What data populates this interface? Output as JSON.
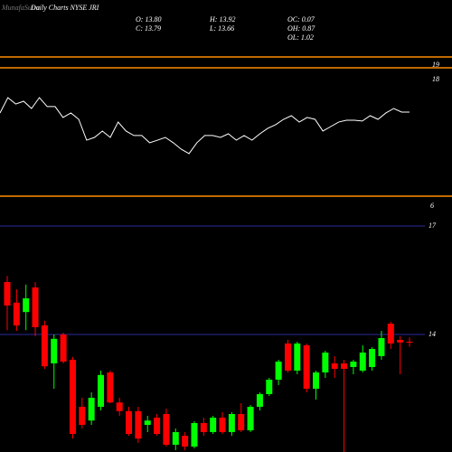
{
  "chart_data": [
    {
      "type": "line",
      "watermark": "MunafaSutra",
      "title": "Daily Charts NYSE JRI",
      "stats": [
        "O: 13.80",
        "H: 13.92",
        "OC: 0.07",
        "C: 13.79",
        "L: 13.66",
        "OH: 0.87",
        "OL: 1.02"
      ],
      "ylim": [
        9.125,
        21
      ],
      "yticks": [
        19,
        18
      ],
      "levels": [
        19.56,
        18.81,
        9.94
      ],
      "level_color": "#ff8c00",
      "color": "#ffffff",
      "values": [
        15.69,
        16.75,
        16.31,
        16.5,
        16,
        16.75,
        16.13,
        16.13,
        15.38,
        15.69,
        15.25,
        13.81,
        14,
        14.44,
        14,
        15.06,
        14.44,
        14.13,
        14.13,
        13.63,
        13.81,
        14,
        13.63,
        13.19,
        12.88,
        13.63,
        14.13,
        14.13,
        14,
        14.25,
        13.81,
        14.13,
        13.81,
        14.25,
        14.63,
        14.88,
        15.25,
        15.5,
        15.06,
        15.38,
        15.25,
        14.44,
        14.75,
        15.06,
        15.19,
        15.19,
        15.13,
        15.5,
        15.25,
        15.69,
        16,
        15.75,
        15.75
      ]
    },
    {
      "type": "candlestick",
      "annotation": "6",
      "ylim": [
        10.75,
        17.5
      ],
      "yticks": [
        17,
        14
      ],
      "grid_color": "#2a2aa0",
      "up_color": "#00ff00",
      "down_color": "#ff0000",
      "open": [
        15.45,
        14.88,
        14.62,
        15.3,
        14.25,
        13.2,
        14.0,
        13.3,
        12.0,
        11.62,
        12.0,
        12.95,
        12.12,
        11.88,
        11.88,
        11.5,
        11.7,
        11.8,
        10.95,
        11.2,
        10.9,
        11.55,
        11.3,
        11.7,
        11.3,
        11.8,
        11.35,
        12.0,
        12.35,
        12.75,
        13.75,
        13.0,
        13.7,
        12.5,
        12.95,
        13.2,
        13.2,
        13.1,
        13.0,
        13.1,
        13.4,
        14.3,
        13.85,
        13.8
      ],
      "high": [
        15.62,
        15.25,
        15.38,
        15.45,
        14.38,
        14.0,
        14.05,
        13.38,
        12.25,
        12.4,
        13.0,
        13.0,
        12.25,
        12.0,
        12.0,
        11.75,
        11.8,
        11.95,
        11.4,
        11.3,
        11.6,
        11.7,
        11.75,
        11.85,
        11.85,
        12.1,
        12.05,
        12.4,
        12.8,
        13.3,
        13.85,
        13.8,
        13.75,
        13.0,
        13.55,
        13.4,
        13.3,
        13.3,
        13.7,
        13.65,
        14.1,
        14.35,
        13.95,
        13.92
      ],
      "low": [
        14.12,
        14.1,
        14.12,
        13.95,
        13.05,
        12.5,
        13.2,
        11.12,
        11.4,
        11.5,
        11.9,
        12.1,
        11.75,
        11.2,
        11.0,
        11.3,
        11.2,
        10.9,
        10.8,
        10.8,
        10.85,
        11.2,
        11.25,
        11.25,
        11.2,
        11.3,
        11.3,
        11.9,
        12.3,
        12.6,
        12.95,
        12.9,
        12.4,
        12.2,
        12.8,
        12.8,
        10.75,
        12.9,
        12.95,
        13.0,
        13.3,
        13.6,
        12.9,
        13.66
      ],
      "close": [
        14.8,
        14.25,
        15.0,
        14.2,
        13.12,
        13.88,
        13.25,
        11.25,
        11.5,
        12.25,
        12.88,
        12.12,
        11.88,
        11.25,
        11.12,
        11.62,
        11.25,
        10.95,
        11.3,
        10.9,
        11.55,
        11.3,
        11.7,
        11.3,
        11.8,
        11.35,
        12.0,
        12.35,
        12.75,
        13.25,
        13.0,
        13.75,
        12.5,
        12.95,
        13.5,
        13.05,
        13.05,
        13.25,
        13.5,
        13.6,
        13.9,
        13.75,
        13.78,
        13.79
      ]
    }
  ]
}
